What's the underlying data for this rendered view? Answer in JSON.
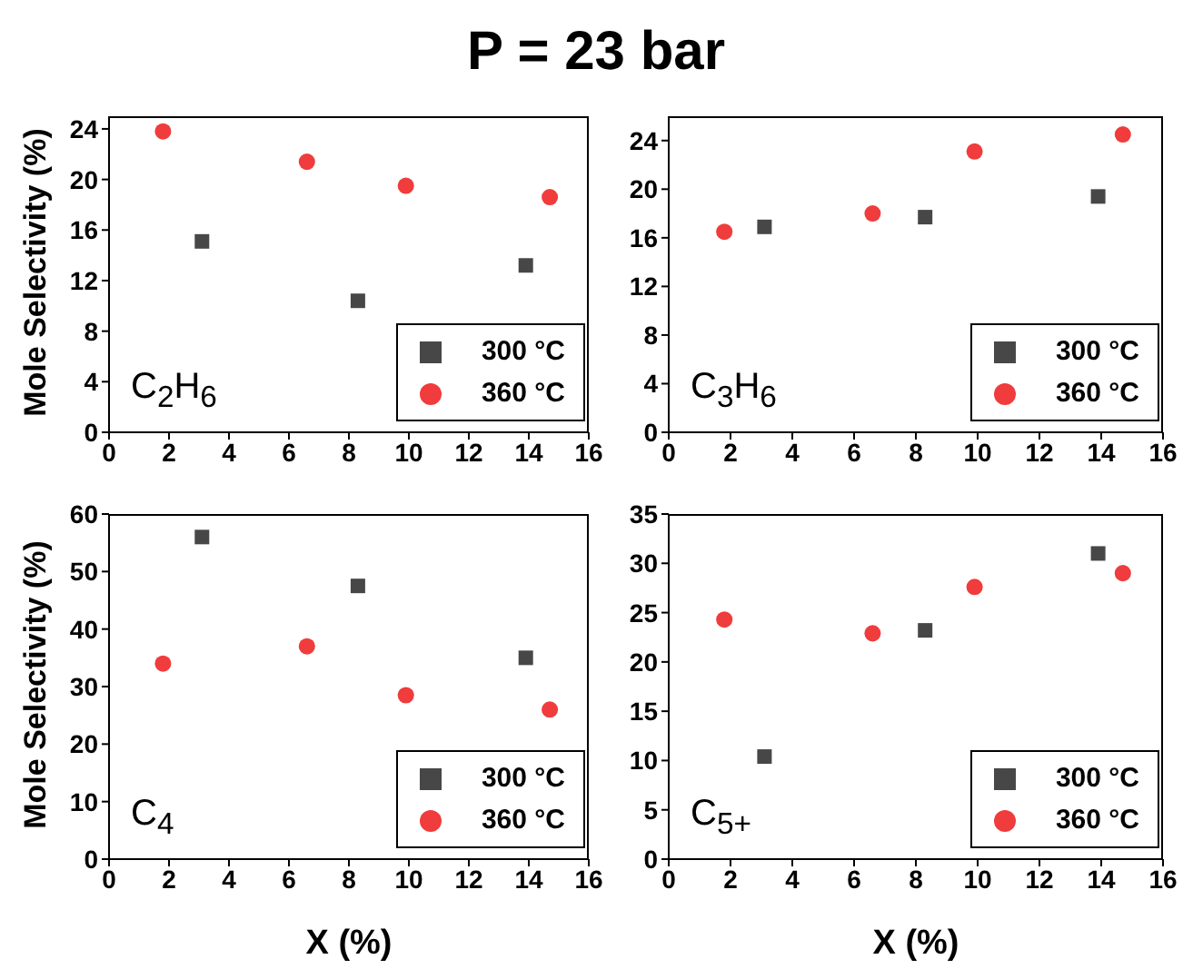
{
  "chart_data": [
    {
      "type": "scatter",
      "title": "P = 23 bar",
      "ylabel": "Mole Selectivity (%)",
      "annotations": [
        "C$_{2}$H$_{6}$"
      ],
      "xlim": [
        0,
        16
      ],
      "xticks": [
        0,
        2,
        4,
        6,
        8,
        10,
        12,
        14,
        16
      ],
      "ylim": [
        0,
        25
      ],
      "yticks": [
        0,
        4,
        8,
        12,
        16,
        20,
        24
      ],
      "grid": false,
      "legend": "bottom right",
      "series": [
        {
          "name": "300 °C",
          "color": "#474747",
          "marker": "square",
          "x": [
            3.1,
            8.3,
            13.9
          ],
          "values": [
            15.1,
            10.4,
            13.2
          ]
        },
        {
          "name": "360 °C",
          "color": "#f03c3c",
          "marker": "circle",
          "x": [
            1.8,
            6.6,
            9.9,
            14.7
          ],
          "values": [
            23.8,
            21.4,
            19.5,
            18.6
          ]
        }
      ]
    },
    {
      "type": "scatter",
      "annotations": [
        "C$_{3}$H$_{6}$"
      ],
      "xlim": [
        0,
        16
      ],
      "xticks": [
        0,
        2,
        4,
        6,
        8,
        10,
        12,
        14,
        16
      ],
      "ylim": [
        0,
        26
      ],
      "yticks": [
        0,
        4,
        8,
        12,
        16,
        20,
        24
      ],
      "grid": false,
      "legend": "bottom right",
      "series": [
        {
          "name": "300 °C",
          "color": "#474747",
          "marker": "square",
          "x": [
            3.1,
            8.3,
            13.9
          ],
          "values": [
            16.9,
            17.7,
            19.4
          ]
        },
        {
          "name": "360 °C",
          "color": "#f03c3c",
          "marker": "circle",
          "x": [
            1.8,
            6.6,
            9.9,
            14.7
          ],
          "values": [
            16.5,
            18.0,
            23.1,
            24.5
          ]
        }
      ]
    },
    {
      "type": "scatter",
      "xlabel": "X (%)",
      "ylabel": "Mole Selectivity (%)",
      "annotations": [
        "C$_{4}$"
      ],
      "xlim": [
        0,
        16
      ],
      "xticks": [
        0,
        2,
        4,
        6,
        8,
        10,
        12,
        14,
        16
      ],
      "ylim": [
        0,
        60
      ],
      "yticks": [
        0,
        10,
        20,
        30,
        40,
        50,
        60
      ],
      "grid": false,
      "legend": "bottom right",
      "series": [
        {
          "name": "300 °C",
          "color": "#474747",
          "marker": "square",
          "x": [
            3.1,
            8.3,
            13.9
          ],
          "values": [
            56,
            47.5,
            35
          ]
        },
        {
          "name": "360 °C",
          "color": "#f03c3c",
          "marker": "circle",
          "x": [
            1.8,
            6.6,
            9.9,
            14.7
          ],
          "values": [
            34,
            37,
            28.5,
            26
          ]
        }
      ]
    },
    {
      "type": "scatter",
      "xlabel": "X (%)",
      "annotations": [
        "C$_{5+}$"
      ],
      "xlim": [
        0,
        16
      ],
      "xticks": [
        0,
        2,
        4,
        6,
        8,
        10,
        12,
        14,
        16
      ],
      "ylim": [
        0,
        35
      ],
      "yticks": [
        0,
        5,
        10,
        15,
        20,
        25,
        30,
        35
      ],
      "grid": false,
      "legend": "bottom right",
      "series": [
        {
          "name": "300 °C",
          "color": "#474747",
          "marker": "square",
          "x": [
            3.1,
            8.3,
            13.9
          ],
          "values": [
            10.4,
            23.2,
            31
          ]
        },
        {
          "name": "360 °C",
          "color": "#f03c3c",
          "marker": "circle",
          "x": [
            1.8,
            6.6,
            9.9,
            14.7
          ],
          "values": [
            24.3,
            22.9,
            27.6,
            29
          ]
        }
      ]
    }
  ]
}
